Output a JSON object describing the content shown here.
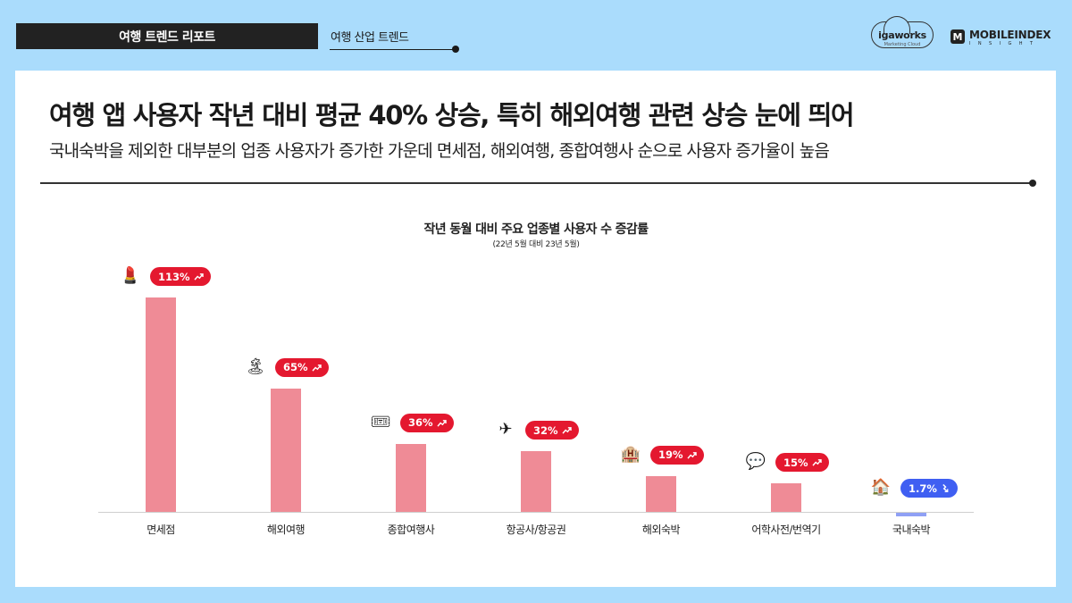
{
  "header": {
    "report_title": "여행 트렌드 리포트",
    "section_label": "여행 산업 트렌드",
    "logos": {
      "igaworks": {
        "name": "igaworks",
        "tagline": "Marketing Cloud"
      },
      "mobileindex": {
        "mark": "M",
        "name": "MOBILEINDEX",
        "sub": "INSIGHT"
      }
    }
  },
  "main": {
    "headline": "여행 앱 사용자 작년 대비 평균 40% 상승, 특히 해외여행 관련 상승 눈에 띄어",
    "subheadline": "국내숙박을 제외한 대부분의 업종 사용자가 증가한 가운데 면세점, 해외여행, 종합여행사 순으로 사용자 증가율이 높음"
  },
  "colors": {
    "background": "#aadcfc",
    "bar_positive": "#ef8b96",
    "bar_negative": "#8fa0f5",
    "badge_up": "#e4182f",
    "badge_down": "#3f5ff2"
  },
  "chart_data": {
    "type": "bar",
    "title": "작년 동월 대비 주요 업종별 사용자 수 증감률",
    "subtitle": "(22년 5월 대비 23년 5월)",
    "xlabel": "",
    "ylabel": "",
    "categories": [
      "면세점",
      "해외여행",
      "종합여행사",
      "항공사/항공권",
      "해외숙박",
      "어학사전/번역기",
      "국내숙박"
    ],
    "values": [
      113,
      65,
      36,
      32,
      19,
      15,
      -1.7
    ],
    "value_labels": [
      "113%",
      "65%",
      "36%",
      "32%",
      "19%",
      "15%",
      "1.7%"
    ],
    "direction": [
      "up",
      "up",
      "up",
      "up",
      "up",
      "up",
      "down"
    ],
    "icons": [
      "lipstick-emoji",
      "desert-island-emoji",
      "ticket-emoji",
      "airplane-emoji",
      "hotel-emoji",
      "speech-bubble-emoji",
      "house-emoji"
    ],
    "icon_glyphs": [
      "💄",
      "🏝",
      "🎟",
      "✈",
      "🏨",
      "💬",
      "🏠"
    ],
    "grid": false,
    "legend": "none",
    "ylim": [
      0,
      120
    ]
  }
}
